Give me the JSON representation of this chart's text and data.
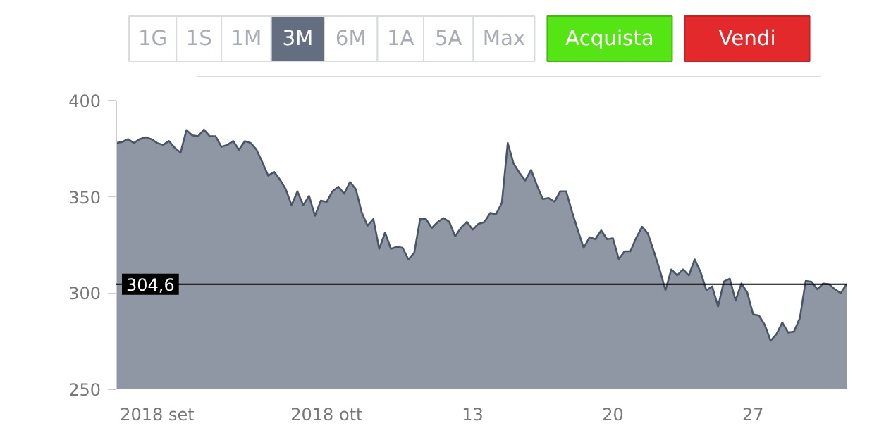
{
  "chart_data": {
    "type": "area",
    "color": "#8e97a3",
    "annotations": [
      "1G",
      "1S",
      "1M",
      "3M",
      "6M",
      "1A",
      "5A",
      "Max",
      "Acquista",
      "Vendi"
    ],
    "categories": [
      null,
      null,
      null,
      null,
      null,
      null,
      null,
      "2018 set",
      null,
      null,
      null,
      null,
      null,
      null,
      null,
      null,
      null,
      null,
      null,
      null,
      null,
      null,
      null,
      null,
      null,
      null,
      null,
      null,
      null,
      null,
      null,
      null,
      null,
      null,
      null,
      null,
      "2018 ott",
      null,
      null,
      null,
      null,
      null,
      null,
      null,
      null,
      null,
      null,
      null,
      null,
      null,
      null,
      null,
      null,
      null,
      null,
      null,
      null,
      null,
      null,
      null,
      null,
      "13",
      null,
      null,
      null,
      null,
      null,
      null,
      null,
      null,
      null,
      null,
      null,
      null,
      null,
      null,
      null,
      null,
      null,
      null,
      null,
      null,
      null,
      null,
      null,
      "20",
      null,
      null,
      null,
      null,
      null,
      null,
      null,
      null,
      null,
      null,
      null,
      null,
      null,
      null,
      null,
      null,
      null,
      null,
      null,
      null,
      null,
      null,
      null,
      "27",
      null,
      null,
      null,
      null,
      null,
      null,
      null,
      null,
      null,
      null,
      null,
      null,
      null,
      null,
      null,
      null
    ],
    "values": [
      378,
      378.5,
      380,
      378,
      380,
      381,
      380,
      378,
      377,
      379,
      375.5,
      373,
      384.7,
      382,
      381.5,
      385,
      381.5,
      381.5,
      376,
      377,
      379,
      374.5,
      379,
      378,
      374.5,
      368,
      361,
      363,
      359,
      354,
      345.7,
      352.9,
      345.7,
      350.5,
      340.2,
      348,
      347.4,
      352.9,
      355.3,
      351.7,
      357.7,
      354,
      342,
      335,
      338.5,
      323,
      331.5,
      323,
      324,
      323.5,
      317.5,
      321,
      338.5,
      338.5,
      333.8,
      336.9,
      339,
      337,
      329.5,
      334,
      337,
      333,
      336,
      336.9,
      341.6,
      341,
      347,
      378,
      367.3,
      362.5,
      358.5,
      364,
      356,
      348.9,
      349.4,
      347.5,
      352.9,
      352.9,
      342.3,
      332.6,
      323.5,
      329,
      328,
      332.6,
      328,
      328.5,
      317.7,
      321.7,
      321.7,
      328.8,
      334.5,
      330.9,
      321.7,
      312.3,
      301.5,
      312.3,
      309.2,
      312.3,
      309.2,
      317.5,
      311,
      301.5,
      303.5,
      293,
      306,
      307.5,
      296.1,
      305,
      300.3,
      289,
      288.3,
      283.5,
      275.2,
      278.7,
      284.7,
      279.5,
      280,
      287,
      306.3,
      305.9,
      302,
      305,
      304.6,
      302,
      300,
      304.6
    ],
    "ylim": [
      250,
      400
    ],
    "yticks": [
      250,
      300,
      350,
      400
    ],
    "ref_lines": [
      {
        "axis": "y",
        "value": 304.6,
        "label": "304,6",
        "color": "#000000"
      }
    ],
    "grid": false
  }
}
